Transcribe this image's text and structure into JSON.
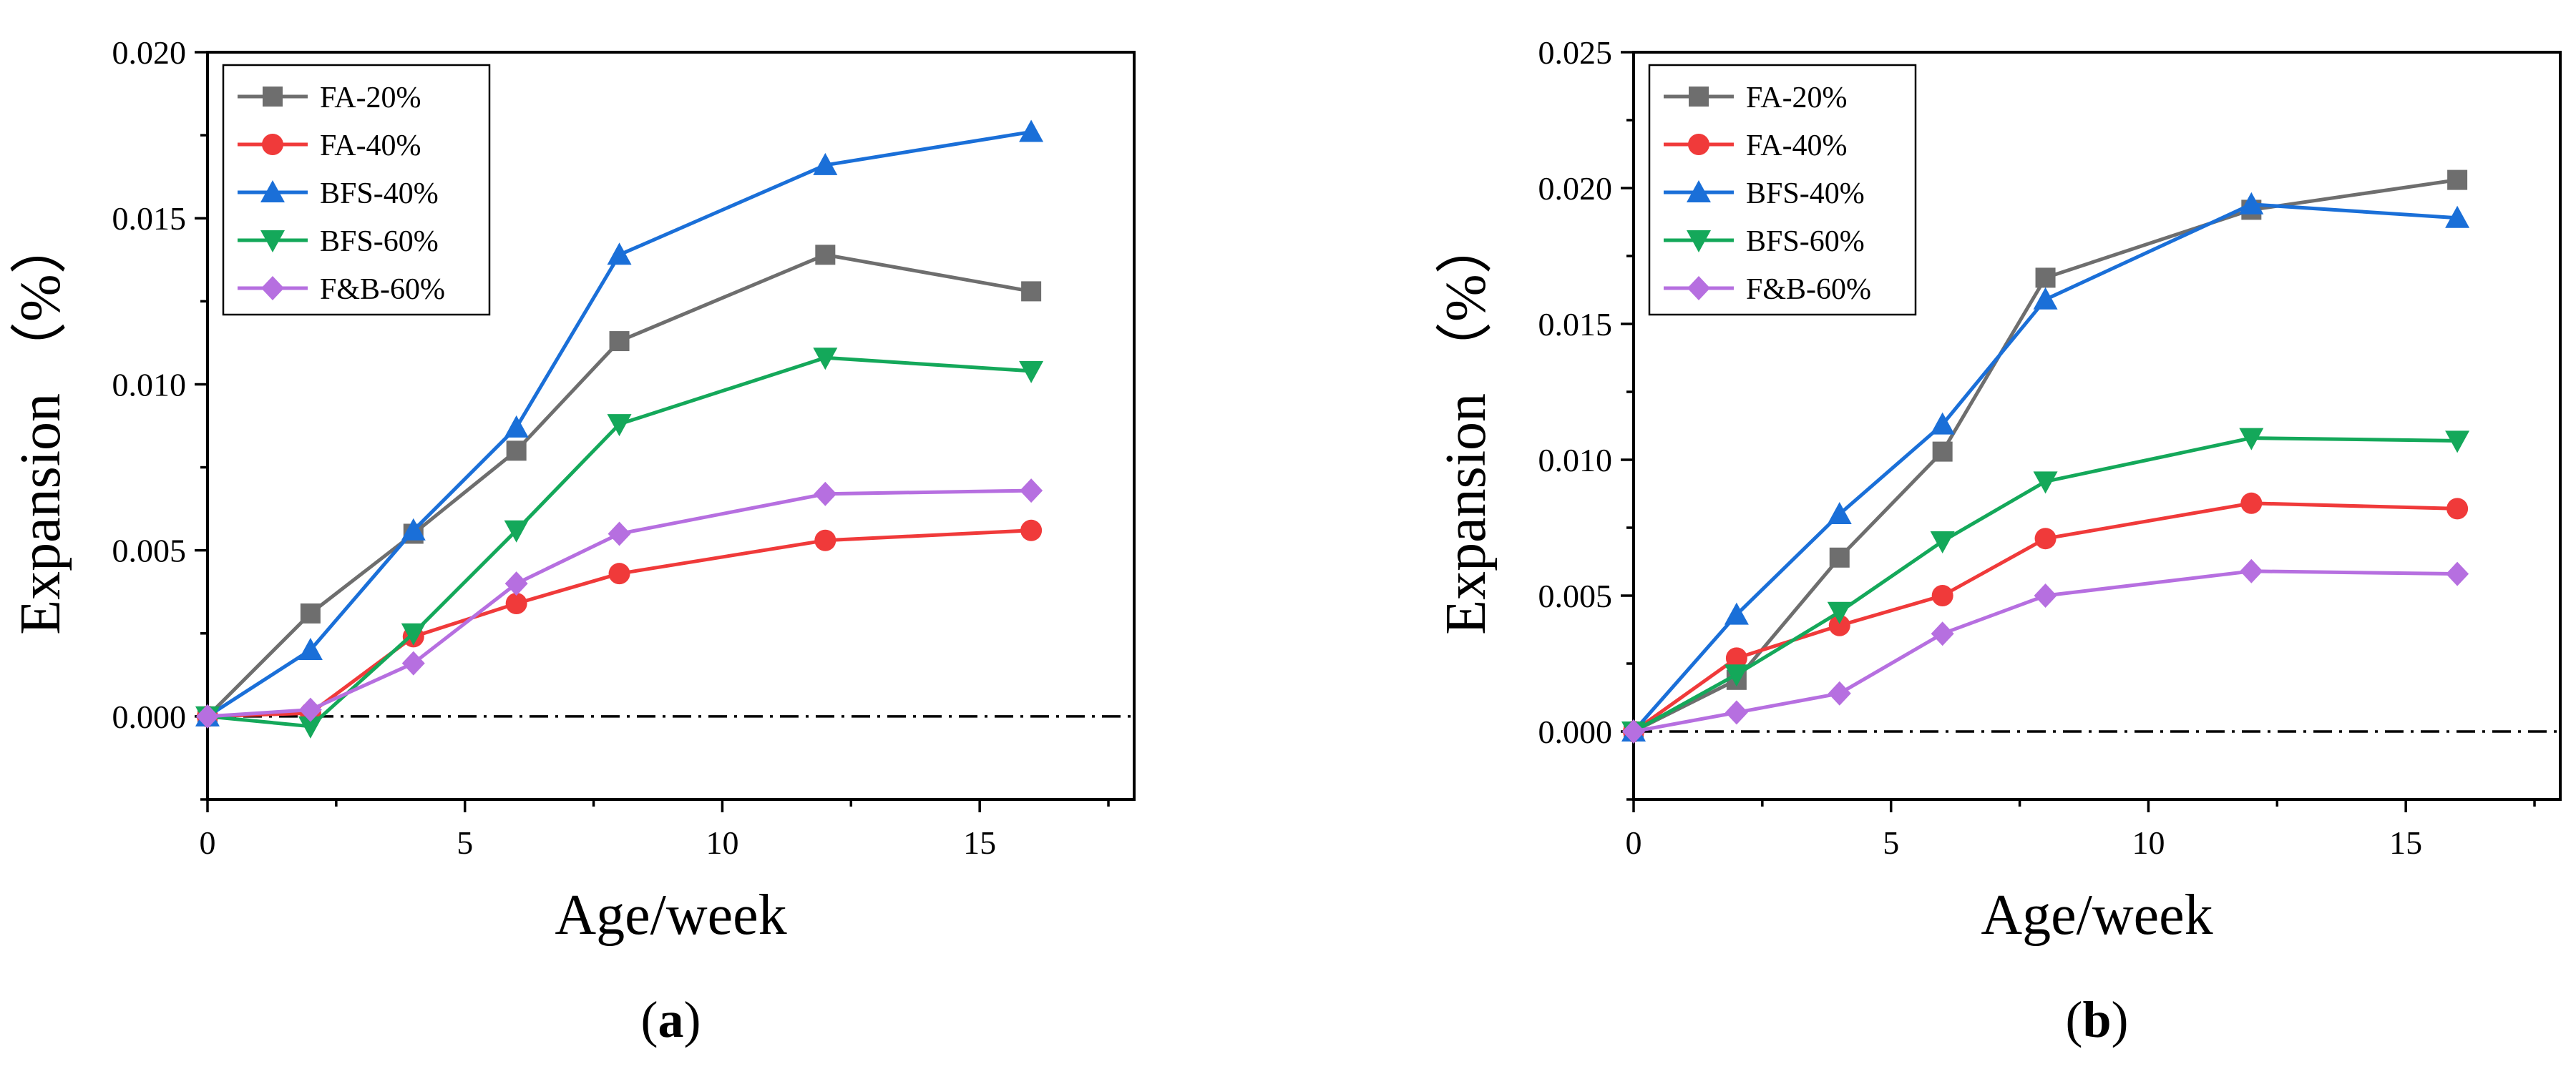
{
  "chart_data": [
    {
      "type": "line",
      "panel_label": "a",
      "xlabel": "Age/week",
      "ylabel": "Expansion （%）",
      "xlim": [
        0,
        18
      ],
      "ylim": [
        -0.0025,
        0.02
      ],
      "x_ticks": [
        0,
        5,
        10,
        15
      ],
      "x_tick_labels": [
        "0",
        "5",
        "10",
        "15"
      ],
      "y_ticks": [
        0,
        0.005,
        0.01,
        0.015,
        0.02
      ],
      "y_tick_labels": [
        "0.000",
        "0.005",
        "0.010",
        "0.015",
        "0.020"
      ],
      "reference_line_y": 0,
      "legend_position": "top-left",
      "x": [
        0,
        2,
        4,
        6,
        8,
        12,
        16
      ],
      "series": [
        {
          "name": "FA-20%",
          "color": "#6e6e6e",
          "marker": "square",
          "values": [
            0,
            0.0031,
            0.0055,
            0.008,
            0.0113,
            0.0139,
            0.0128
          ]
        },
        {
          "name": "FA-40%",
          "color": "#f03a3a",
          "marker": "circle",
          "values": [
            0,
            0.0001,
            0.0024,
            0.0034,
            0.0043,
            0.0053,
            0.0056
          ]
        },
        {
          "name": "BFS-40%",
          "color": "#1a6fd8",
          "marker": "triangle-up",
          "values": [
            0,
            0.002,
            0.0056,
            0.0087,
            0.0139,
            0.0166,
            0.0176
          ]
        },
        {
          "name": "BFS-60%",
          "color": "#14a85a",
          "marker": "triangle-down",
          "values": [
            0,
            -0.0003,
            0.0025,
            0.0056,
            0.0088,
            0.0108,
            0.0104
          ]
        },
        {
          "name": "F&B-60%",
          "color": "#b66fe0",
          "marker": "diamond",
          "values": [
            0,
            0.0002,
            0.0016,
            0.004,
            0.0055,
            0.0067,
            0.0068
          ]
        }
      ]
    },
    {
      "type": "line",
      "panel_label": "b",
      "xlabel": "Age/week",
      "ylabel": "Expansion （%）",
      "xlim": [
        0,
        18
      ],
      "ylim": [
        -0.0025,
        0.025
      ],
      "x_ticks": [
        0,
        5,
        10,
        15
      ],
      "x_tick_labels": [
        "0",
        "5",
        "10",
        "15"
      ],
      "y_ticks": [
        0,
        0.005,
        0.01,
        0.015,
        0.02,
        0.025
      ],
      "y_tick_labels": [
        "0.000",
        "0.005",
        "0.010",
        "0.015",
        "0.020",
        "0.025"
      ],
      "reference_line_y": 0,
      "legend_position": "top-left",
      "x": [
        0,
        2,
        4,
        6,
        8,
        12,
        16
      ],
      "series": [
        {
          "name": "FA-20%",
          "color": "#6e6e6e",
          "marker": "square",
          "values": [
            0,
            0.0019,
            0.0064,
            0.0103,
            0.0167,
            0.0192,
            0.0203
          ]
        },
        {
          "name": "FA-40%",
          "color": "#f03a3a",
          "marker": "circle",
          "values": [
            0,
            0.0027,
            0.0039,
            0.005,
            0.0071,
            0.0084,
            0.0082
          ]
        },
        {
          "name": "BFS-40%",
          "color": "#1a6fd8",
          "marker": "triangle-up",
          "values": [
            0,
            0.0043,
            0.008,
            0.0113,
            0.0159,
            0.0194,
            0.0189
          ]
        },
        {
          "name": "BFS-60%",
          "color": "#14a85a",
          "marker": "triangle-down",
          "values": [
            0,
            0.0021,
            0.0044,
            0.007,
            0.0092,
            0.0108,
            0.0107
          ]
        },
        {
          "name": "F&B-60%",
          "color": "#b66fe0",
          "marker": "diamond",
          "values": [
            0,
            0.0007,
            0.0014,
            0.0036,
            0.005,
            0.0059,
            0.0058
          ]
        }
      ]
    }
  ]
}
